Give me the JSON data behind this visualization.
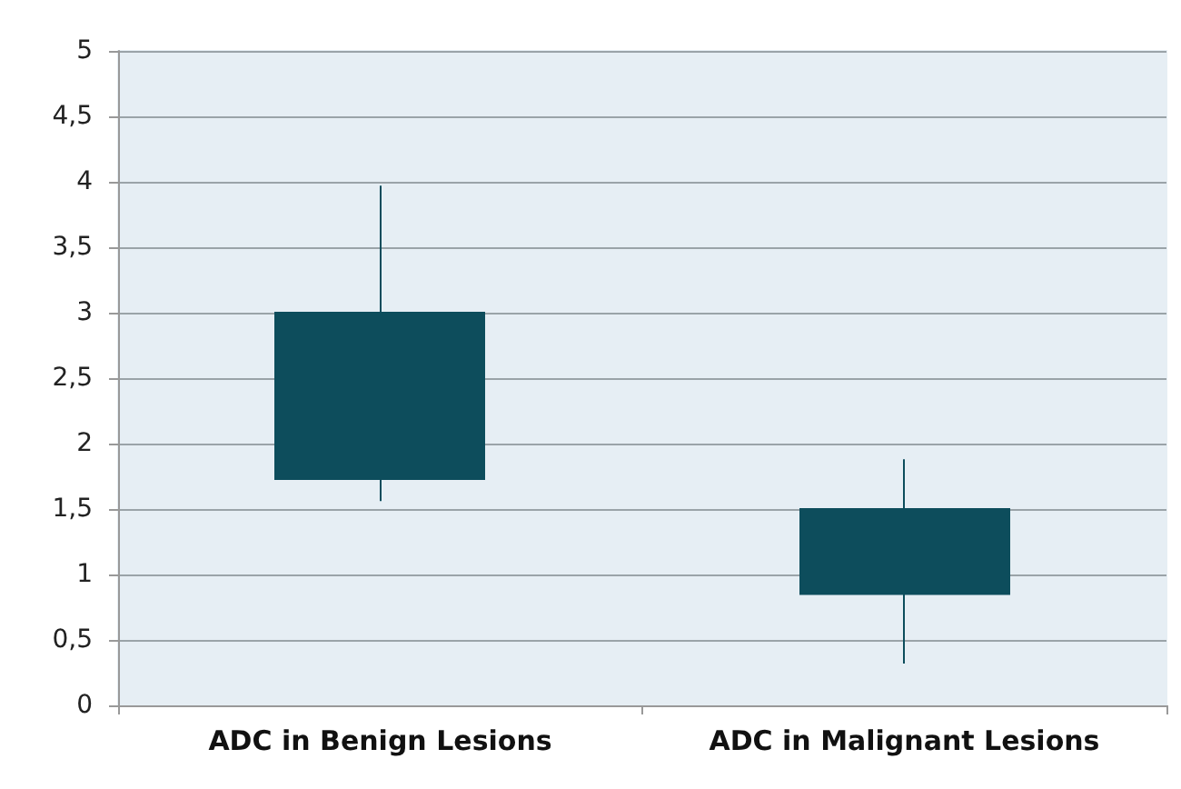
{
  "chart_data": {
    "type": "candlestick",
    "categories": [
      "ADC in Benign Lesions",
      "ADC in Malignant Lesions"
    ],
    "ohlc": [
      [
        1.73,
        3.97,
        1.56,
        3.0
      ],
      [
        0.85,
        1.88,
        0.32,
        1.5
      ]
    ],
    "color": "#0d4d5c",
    "ylim": [
      0,
      5
    ],
    "yticks": [
      0,
      {
        "value": 0.5,
        "label": "0,5"
      },
      1,
      {
        "value": 1.5,
        "label": "1,5"
      },
      2,
      {
        "value": 2.5,
        "label": "2,5"
      },
      3,
      {
        "value": 3.5,
        "label": "3,5"
      },
      4,
      {
        "value": 4.5,
        "label": "4,5"
      },
      5
    ],
    "grid": "y"
  }
}
